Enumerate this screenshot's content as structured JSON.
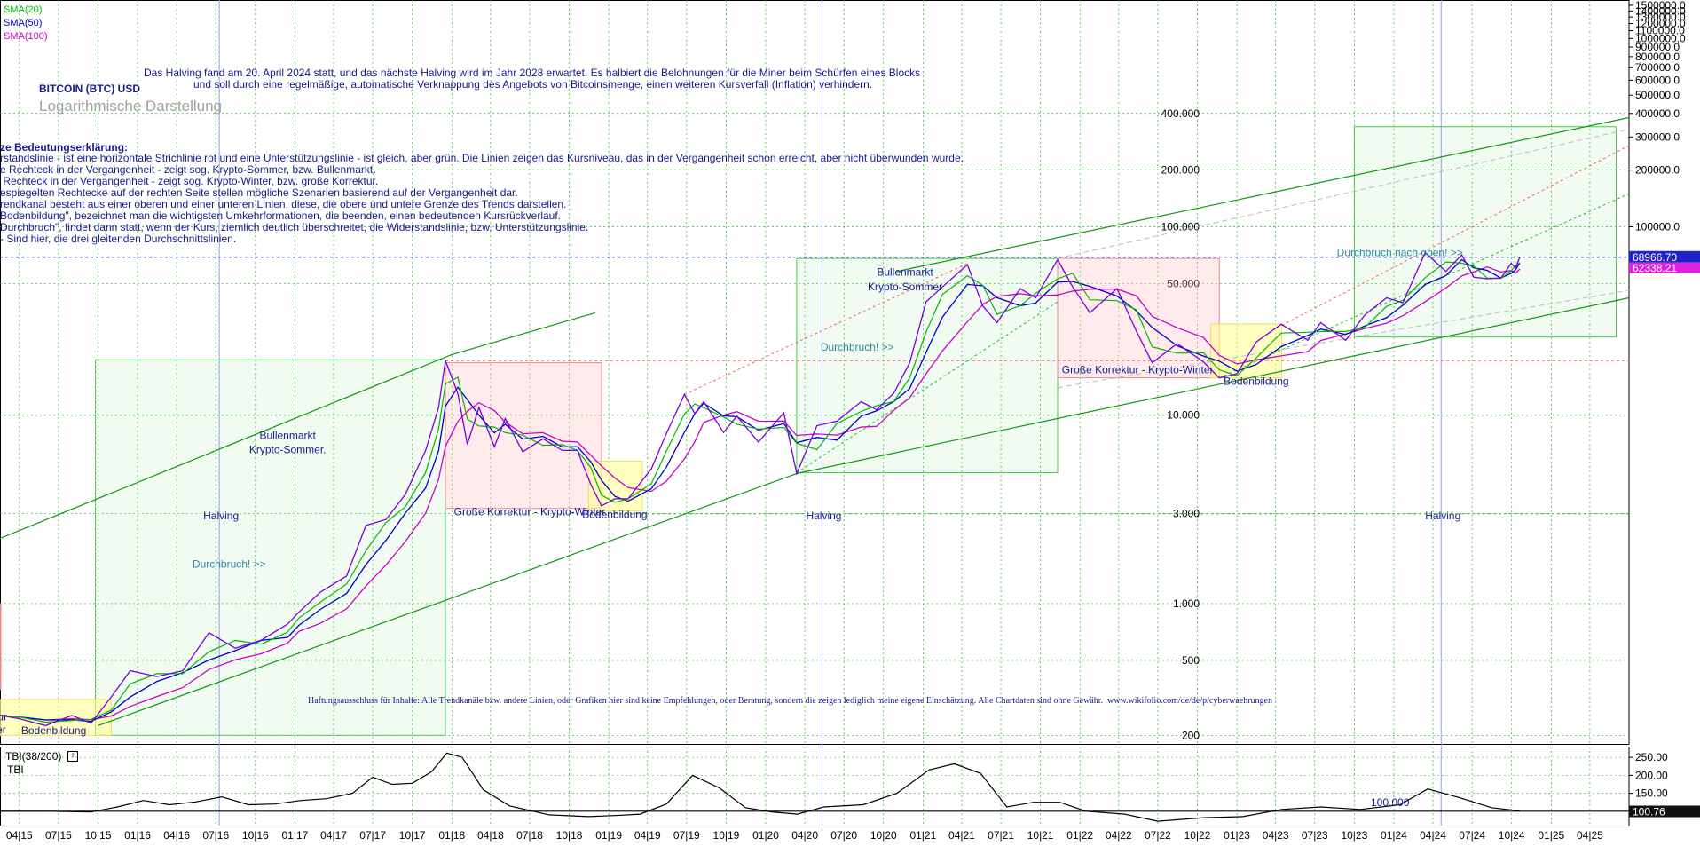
{
  "chart_data": {
    "type": "line",
    "scale": "log",
    "title": "BITCOIN (BTC) USD",
    "subtitle": "Logarithmische Darstellung",
    "indicators": [
      "SMA(20)",
      "SMA(50)",
      "SMA(100)"
    ],
    "indicator_colors": [
      "#00bb00",
      "#0000cc",
      "#cc00cc"
    ],
    "info_text": [
      "Das Halving fand am 20. April 2024 statt, und das nächste Halving wird im Jahr 2028 erwartet. Es halbiert die Belohnungen für die Miner beim Schürfen eines Blocks",
      "und soll durch eine regelmäßige, automatische Verknappung des Angebots von Bitcoinsmenge, einen weiteren Kursverfall (Inflation) verhindern."
    ],
    "legend_title": "ze Bedeutungserklärung:",
    "legend_lines": [
      "rstandslinie - ist eine horizontale Strichlinie rot und eine Unterstützungslinie - ist gleich, aber grün. Die Linien zeigen das Kursniveau, das in der Vergangenheit schon erreicht, aber nicht überwunden wurde.",
      "e Rechteck in der Vergangenheit - zeigt sog. Krypto-Sommer, bzw. Bullenmarkt.",
      " Rechteck in der Vergangenheit - zeigt sog. Krypto-Winter, bzw. große Korrektur.",
      "espiegelten Rechtecke auf der rechten Seite stellen mögliche Szenarien basierend auf der Vergangenheit dar.",
      "rendkanal besteht aus einer oberen und einer unteren Linien, diese, die obere und untere Grenze des Trends darstellen.",
      "Bodenbildung\", bezeichnet man die wichtigsten Umkehrformationen, die beenden, einen bedeutenden Kursrückverlauf.",
      "Durchbruch\", findet dann statt, wenn der Kurs, ziemlich deutlich überschreitet, die Widerstandslinie, bzw. Unterstützungslinie.",
      "- Sind hier, die drei gleitenden Durchschnittslinien."
    ],
    "disclaimer": "Haftungsausschluss für Inhalte: Alle Trendkanäle bzw. andere Linien, oder Grafiken hier sind keine Empfehlungen, oder Beratung, sondern die zeigen lediglich meine eigene Einschätzung. Alle Chartdaten sind ohne Gewähr.  www.wikifolio.com/de/de/p/cyberwaehrungen",
    "x_labels": [
      "04.15",
      "07.15",
      "10.15",
      "01.16",
      "04.16",
      "07.16",
      "10.16",
      "01.17",
      "04.17",
      "07.17",
      "10.17",
      "01.18",
      "04.18",
      "07.18",
      "10.18",
      "01.19",
      "04.19",
      "07.19",
      "10.19",
      "01.20",
      "04.20",
      "07.20",
      "10.20",
      "01.21",
      "04.21",
      "07.21",
      "10.21",
      "01.22",
      "04.22",
      "07.22",
      "10.22",
      "01.23",
      "04.23",
      "07.23",
      "10.23",
      "01.24",
      "04.24",
      "07.24",
      "10.24",
      "01.25",
      "04.25"
    ],
    "x_labels_display": [
      "04|15",
      "07|15",
      "10|15",
      "01|16",
      "04|16",
      "07|16",
      "10|16",
      "01|17",
      "04|17",
      "07|17",
      "10|17",
      "01|18",
      "04|18",
      "07|18",
      "10|18",
      "01|19",
      "04|19",
      "07|19",
      "10|19",
      "01|20",
      "04|20",
      "07|20",
      "10|20",
      "01|21",
      "04|21",
      "07|21",
      "10|21",
      "01|22",
      "04|22",
      "07|22",
      "10|22",
      "01|23",
      "04|23",
      "07|23",
      "10|23",
      "01|24",
      "04|24",
      "07|24",
      "10|24",
      "01|25",
      "04|25"
    ],
    "xlim": [
      "2015-02-15",
      "2025-07-01"
    ],
    "ylim": [
      180,
      1600000
    ],
    "y_right_ticks": [
      "1500000.0",
      "1400000.0",
      "1300000.0",
      "1200000.0",
      "1100000.0",
      "1000000.0",
      "900000.0",
      "800000.0",
      "700000.0",
      "600000.0",
      "500000.0",
      "400000.0",
      "300000.0",
      "200000.0",
      "100000.0"
    ],
    "y_right_tick_values": [
      1500000,
      1400000,
      1300000,
      1200000,
      1100000,
      1000000,
      900000,
      800000,
      700000,
      600000,
      500000,
      400000,
      300000,
      200000,
      100000
    ],
    "y_inner_ticks": [
      "400.000",
      "200.000",
      "100.000",
      "50.000",
      "10.000",
      "3.000",
      "1.000",
      "500",
      "200"
    ],
    "y_inner_tick_values": [
      400000,
      200000,
      100000,
      50000,
      10000,
      3000,
      1000,
      500,
      200
    ],
    "last_price": "68966.70",
    "last_price_value": 68966.7,
    "sma_value": "62338.21",
    "sma_value_num": 62338.21,
    "price_series": {
      "name": "BTC",
      "points": [
        [
          "2015-02-15",
          255
        ],
        [
          "2015-04-01",
          245
        ],
        [
          "2015-06-01",
          225
        ],
        [
          "2015-08-01",
          255
        ],
        [
          "2015-09-15",
          232
        ],
        [
          "2015-11-01",
          320
        ],
        [
          "2015-12-15",
          440
        ],
        [
          "2016-02-15",
          410
        ],
        [
          "2016-04-15",
          440
        ],
        [
          "2016-06-15",
          700
        ],
        [
          "2016-08-15",
          580
        ],
        [
          "2016-10-15",
          640
        ],
        [
          "2016-12-15",
          780
        ],
        [
          "2017-01-10",
          900
        ],
        [
          "2017-03-01",
          1150
        ],
        [
          "2017-05-01",
          1400
        ],
        [
          "2017-06-15",
          2600
        ],
        [
          "2017-08-01",
          2800
        ],
        [
          "2017-09-15",
          3800
        ],
        [
          "2017-11-01",
          6500
        ],
        [
          "2017-12-01",
          11000
        ],
        [
          "2017-12-17",
          19500
        ],
        [
          "2018-01-15",
          13000
        ],
        [
          "2018-02-06",
          7000
        ],
        [
          "2018-03-05",
          11000
        ],
        [
          "2018-04-10",
          6800
        ],
        [
          "2018-05-05",
          9600
        ],
        [
          "2018-06-15",
          6400
        ],
        [
          "2018-08-01",
          7500
        ],
        [
          "2018-09-15",
          6500
        ],
        [
          "2018-10-20",
          6500
        ],
        [
          "2018-11-20",
          4300
        ],
        [
          "2018-12-15",
          3300
        ],
        [
          "2019-01-15",
          3600
        ],
        [
          "2019-02-15",
          3600
        ],
        [
          "2019-04-10",
          5200
        ],
        [
          "2019-05-15",
          8000
        ],
        [
          "2019-06-26",
          12900
        ],
        [
          "2019-07-20",
          10200
        ],
        [
          "2019-08-10",
          11800
        ],
        [
          "2019-09-25",
          8100
        ],
        [
          "2019-10-26",
          9900
        ],
        [
          "2019-12-15",
          7200
        ],
        [
          "2020-02-12",
          10300
        ],
        [
          "2020-03-13",
          4900
        ],
        [
          "2020-04-29",
          8800
        ],
        [
          "2020-06-15",
          9300
        ],
        [
          "2020-08-10",
          11800
        ],
        [
          "2020-09-15",
          10700
        ],
        [
          "2020-10-25",
          13100
        ],
        [
          "2020-12-01",
          19000
        ],
        [
          "2021-01-08",
          40000
        ],
        [
          "2021-02-15",
          48000
        ],
        [
          "2021-04-14",
          63000
        ],
        [
          "2021-05-20",
          38000
        ],
        [
          "2021-06-22",
          31000
        ],
        [
          "2021-08-15",
          47000
        ],
        [
          "2021-09-20",
          42000
        ],
        [
          "2021-11-10",
          67000
        ],
        [
          "2021-12-15",
          48000
        ],
        [
          "2022-01-24",
          35000
        ],
        [
          "2022-03-28",
          47000
        ],
        [
          "2022-05-12",
          28000
        ],
        [
          "2022-06-18",
          19000
        ],
        [
          "2022-08-15",
          24000
        ],
        [
          "2022-10-15",
          19200
        ],
        [
          "2022-11-21",
          15800
        ],
        [
          "2023-01-01",
          16600
        ],
        [
          "2023-02-15",
          24500
        ],
        [
          "2023-04-14",
          30400
        ],
        [
          "2023-06-15",
          25000
        ],
        [
          "2023-07-15",
          31000
        ],
        [
          "2023-09-11",
          25000
        ],
        [
          "2023-10-25",
          34000
        ],
        [
          "2023-12-15",
          42000
        ],
        [
          "2024-01-22",
          39500
        ],
        [
          "2024-03-14",
          73000
        ],
        [
          "2024-05-01",
          58000
        ],
        [
          "2024-06-07",
          71000
        ],
        [
          "2024-07-05",
          54000
        ],
        [
          "2024-08-05",
          53000
        ],
        [
          "2024-09-06",
          53500
        ],
        [
          "2024-09-30",
          64000
        ],
        [
          "2024-10-10",
          60500
        ],
        [
          "2024-10-20",
          68966.7
        ]
      ]
    },
    "halvings": [
      "2016-07-09",
      "2020-05-11",
      "2024-04-20"
    ],
    "halving_label": "Halving",
    "channel_upper": [
      [
        "2015-01-20",
        2100
      ],
      [
        "2018-01-01",
        21000
      ],
      [
        "2020-11-01",
        58000
      ],
      [
        "2025-07-01",
        380000
      ]
    ],
    "channel_lower": [
      [
        "2015-10-01",
        225
      ],
      [
        "2020-03-13",
        4900
      ],
      [
        "2025-07-01",
        42000
      ]
    ],
    "resistance_level": 19500,
    "support_level_low": 3000,
    "support_level_high": 69000,
    "zones": [
      {
        "kind": "bull",
        "x0": "2015-09-25",
        "x1": "2017-12-17",
        "y0": 200,
        "y1": 19700
      },
      {
        "kind": "bear",
        "x0": "2017-12-17",
        "x1": "2018-12-15",
        "y0": 3200,
        "y1": 19000
      },
      {
        "kind": "bottom",
        "x0": "2018-11-15",
        "x1": "2019-03-20",
        "y0": 3100,
        "y1": 5700
      },
      {
        "kind": "bull",
        "x0": "2020-03-13",
        "x1": "2021-11-10",
        "y0": 4950,
        "y1": 68000
      },
      {
        "kind": "bear",
        "x0": "2021-11-10",
        "x1": "2022-11-21",
        "y0": 15800,
        "y1": 68000
      },
      {
        "kind": "bottom",
        "x0": "2022-11-01",
        "x1": "2023-04-15",
        "y0": 15800,
        "y1": 30500
      },
      {
        "kind": "bull",
        "x0": "2023-10-01",
        "x1": "2025-06-01",
        "y0": 26000,
        "y1": 340000
      },
      {
        "kind": "bear",
        "x0": "2014-12-01",
        "x1": "2015-02-15",
        "y0": 350,
        "y1": 1000
      },
      {
        "kind": "bottom",
        "x0": "2015-01-01",
        "x1": "2015-11-01",
        "y0": 200,
        "y1": 310
      }
    ],
    "annotations": [
      {
        "text": "Bullenmarkt",
        "date": "2016-12-15",
        "value": 7500,
        "color": "navy"
      },
      {
        "text": "Krypto-Sommer.",
        "date": "2016-12-15",
        "value": 6300,
        "color": "navy"
      },
      {
        "text": "Große Korrektur - Krypto-Winter",
        "date": "2018-07-01",
        "value": 2950,
        "color": "navy"
      },
      {
        "text": "Bodenbildung",
        "date": "2019-01-15",
        "value": 2850,
        "color": "navy"
      },
      {
        "text": "Durchbruch! >>",
        "date": "2016-08-01",
        "value": 1550,
        "color": "teal"
      },
      {
        "text": "Bullenmarkt",
        "date": "2020-11-20",
        "value": 55000,
        "color": "navy"
      },
      {
        "text": "Krypto-Sommer",
        "date": "2020-11-20",
        "value": 46000,
        "color": "navy"
      },
      {
        "text": "Durchbruch! >>",
        "date": "2020-08-01",
        "value": 22000,
        "color": "teal"
      },
      {
        "text": "Große Korrektur - Krypto-Winter",
        "date": "2022-05-15",
        "value": 16700,
        "color": "navy"
      },
      {
        "text": "Bodenbildung",
        "date": "2023-02-15",
        "value": 14500,
        "color": "navy"
      },
      {
        "text": "Durchbruch nach oben! >>",
        "date": "2024-01-15",
        "value": 70000,
        "color": "teal"
      },
      {
        "text": "orrektur",
        "date": "2015-01-20",
        "value": 240,
        "color": "navy"
      },
      {
        "text": "-Winter",
        "date": "2015-01-20",
        "value": 205,
        "color": "navy"
      },
      {
        "text": "Bodenbildung",
        "date": "2015-06-20",
        "value": 203,
        "color": "navy"
      }
    ],
    "tbi": {
      "label": "TBI(38/200)",
      "sub_label": "TBI",
      "ylim": [
        60,
        280
      ],
      "ticks": [
        "250.00",
        "200.00",
        "150.00"
      ],
      "tick_values": [
        250,
        200,
        150
      ],
      "ref_level": "100.000",
      "ref_level_value": 100,
      "last_value": "100.76",
      "points": [
        [
          "2015-02-15",
          100
        ],
        [
          "2015-06-01",
          100
        ],
        [
          "2015-09-15",
          98
        ],
        [
          "2015-11-15",
          112
        ],
        [
          "2016-01-15",
          130
        ],
        [
          "2016-03-15",
          118
        ],
        [
          "2016-05-15",
          126
        ],
        [
          "2016-07-15",
          140
        ],
        [
          "2016-09-15",
          118
        ],
        [
          "2016-11-15",
          120
        ],
        [
          "2017-01-15",
          130
        ],
        [
          "2017-03-15",
          135
        ],
        [
          "2017-05-15",
          150
        ],
        [
          "2017-07-01",
          195
        ],
        [
          "2017-08-15",
          175
        ],
        [
          "2017-10-01",
          178
        ],
        [
          "2017-11-15",
          210
        ],
        [
          "2017-12-20",
          262
        ],
        [
          "2018-01-25",
          250
        ],
        [
          "2018-03-15",
          160
        ],
        [
          "2018-05-15",
          115
        ],
        [
          "2018-08-15",
          90
        ],
        [
          "2018-11-15",
          85
        ],
        [
          "2019-01-15",
          88
        ],
        [
          "2019-03-15",
          92
        ],
        [
          "2019-05-15",
          120
        ],
        [
          "2019-07-15",
          200
        ],
        [
          "2019-09-15",
          165
        ],
        [
          "2019-11-15",
          110
        ],
        [
          "2020-01-15",
          98
        ],
        [
          "2020-03-15",
          92
        ],
        [
          "2020-05-15",
          112
        ],
        [
          "2020-08-15",
          118
        ],
        [
          "2020-11-01",
          150
        ],
        [
          "2021-01-15",
          215
        ],
        [
          "2021-03-15",
          232
        ],
        [
          "2021-05-15",
          205
        ],
        [
          "2021-07-15",
          112
        ],
        [
          "2021-09-15",
          125
        ],
        [
          "2021-11-15",
          125
        ],
        [
          "2022-01-15",
          100
        ],
        [
          "2022-04-15",
          92
        ],
        [
          "2022-07-01",
          72
        ],
        [
          "2022-10-15",
          82
        ],
        [
          "2023-01-15",
          85
        ],
        [
          "2023-04-15",
          105
        ],
        [
          "2023-07-15",
          112
        ],
        [
          "2023-10-15",
          105
        ],
        [
          "2024-01-15",
          118
        ],
        [
          "2024-03-20",
          162
        ],
        [
          "2024-06-01",
          138
        ],
        [
          "2024-08-15",
          110
        ],
        [
          "2024-10-20",
          100.76
        ]
      ]
    }
  }
}
